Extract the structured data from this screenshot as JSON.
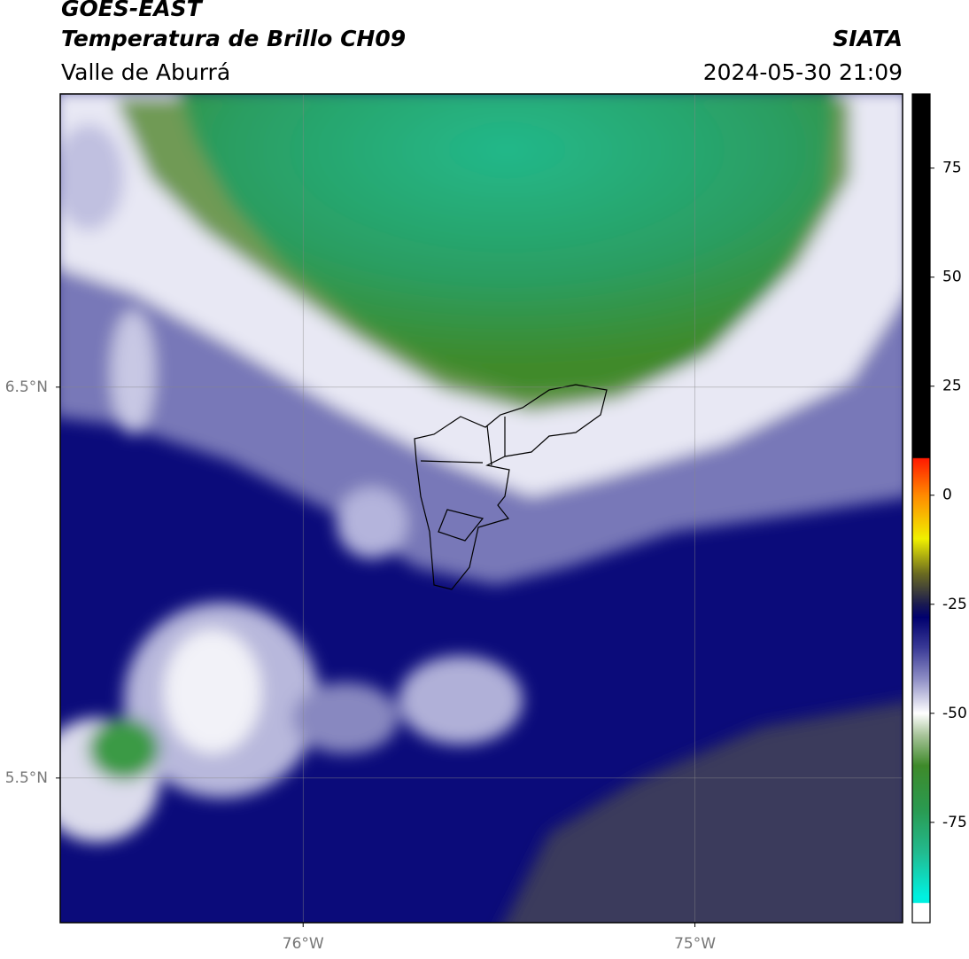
{
  "header": {
    "title": "GOES-EAST",
    "subtitle": "Temperatura de Brillo CH09",
    "region": "Valle de Aburrá",
    "source": "SIATA",
    "datetime": "2024-05-30 21:09"
  },
  "map": {
    "lonlim": [
      -76.62,
      -74.47
    ],
    "latlim": [
      5.13,
      7.25
    ],
    "lonticks": [
      {
        "value": -76,
        "label": "76°W"
      },
      {
        "value": -75,
        "label": "75°W"
      }
    ],
    "latticks": [
      {
        "value": 6.5,
        "label": "6.5°N"
      },
      {
        "value": 5.5,
        "label": "5.5°N"
      }
    ],
    "grid": true
  },
  "colorbar": {
    "lim": [
      -98,
      92
    ],
    "ticks": [
      75,
      50,
      25,
      0,
      -25,
      -50,
      -75
    ],
    "colormap": [
      [
        92,
        "#000000"
      ],
      [
        8.6,
        "#000000"
      ],
      [
        8.4,
        "#ff1a00"
      ],
      [
        0,
        "#ff8a00"
      ],
      [
        -10,
        "#f0f000"
      ],
      [
        -18,
        "#6a6a20"
      ],
      [
        -25,
        "#1a1a50"
      ],
      [
        -28,
        "#00006e"
      ],
      [
        -35,
        "#3a3a96"
      ],
      [
        -42,
        "#8c8cc4"
      ],
      [
        -50,
        "#ffffff"
      ],
      [
        -55,
        "#a8c49a"
      ],
      [
        -62,
        "#3e8a2a"
      ],
      [
        -72,
        "#2a9a50"
      ],
      [
        -82,
        "#22bb90"
      ],
      [
        -92,
        "#00f0e0"
      ],
      [
        -93.4,
        "#00f0e0"
      ],
      [
        -93.6,
        "#ffffff"
      ],
      [
        -98,
        "#ffffff"
      ]
    ]
  }
}
